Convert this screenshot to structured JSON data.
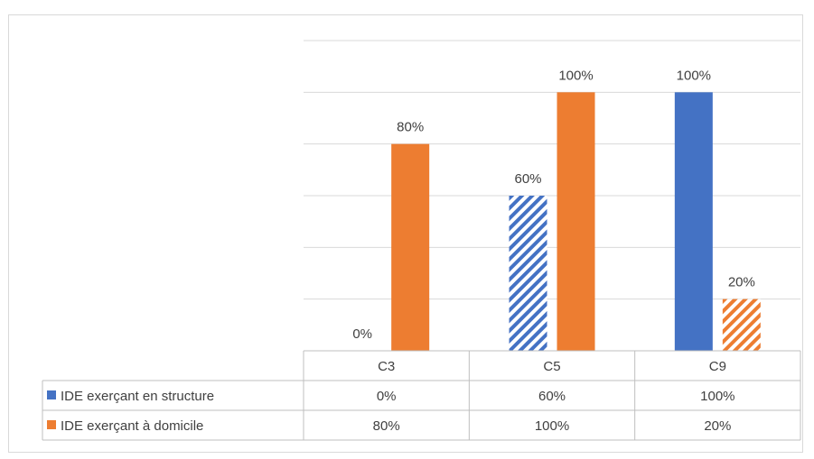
{
  "chart_data": {
    "type": "bar",
    "categories": [
      "C3",
      "C5",
      "C9"
    ],
    "series": [
      {
        "name": "IDE exerçant en structure",
        "values": [
          0,
          60,
          100
        ],
        "labels": [
          "0%",
          "60%",
          "100%"
        ],
        "color": "#4472c4",
        "hatched": [
          false,
          true,
          false
        ]
      },
      {
        "name": "IDE exerçant à domicile",
        "values": [
          80,
          100,
          20
        ],
        "labels": [
          "80%",
          "100%",
          "20%"
        ],
        "color": "#ed7d31",
        "hatched": [
          false,
          false,
          true
        ]
      }
    ],
    "ylim": [
      0,
      120
    ],
    "gridlines": true,
    "data_table": true,
    "title": "",
    "xlabel": "",
    "ylabel": ""
  }
}
